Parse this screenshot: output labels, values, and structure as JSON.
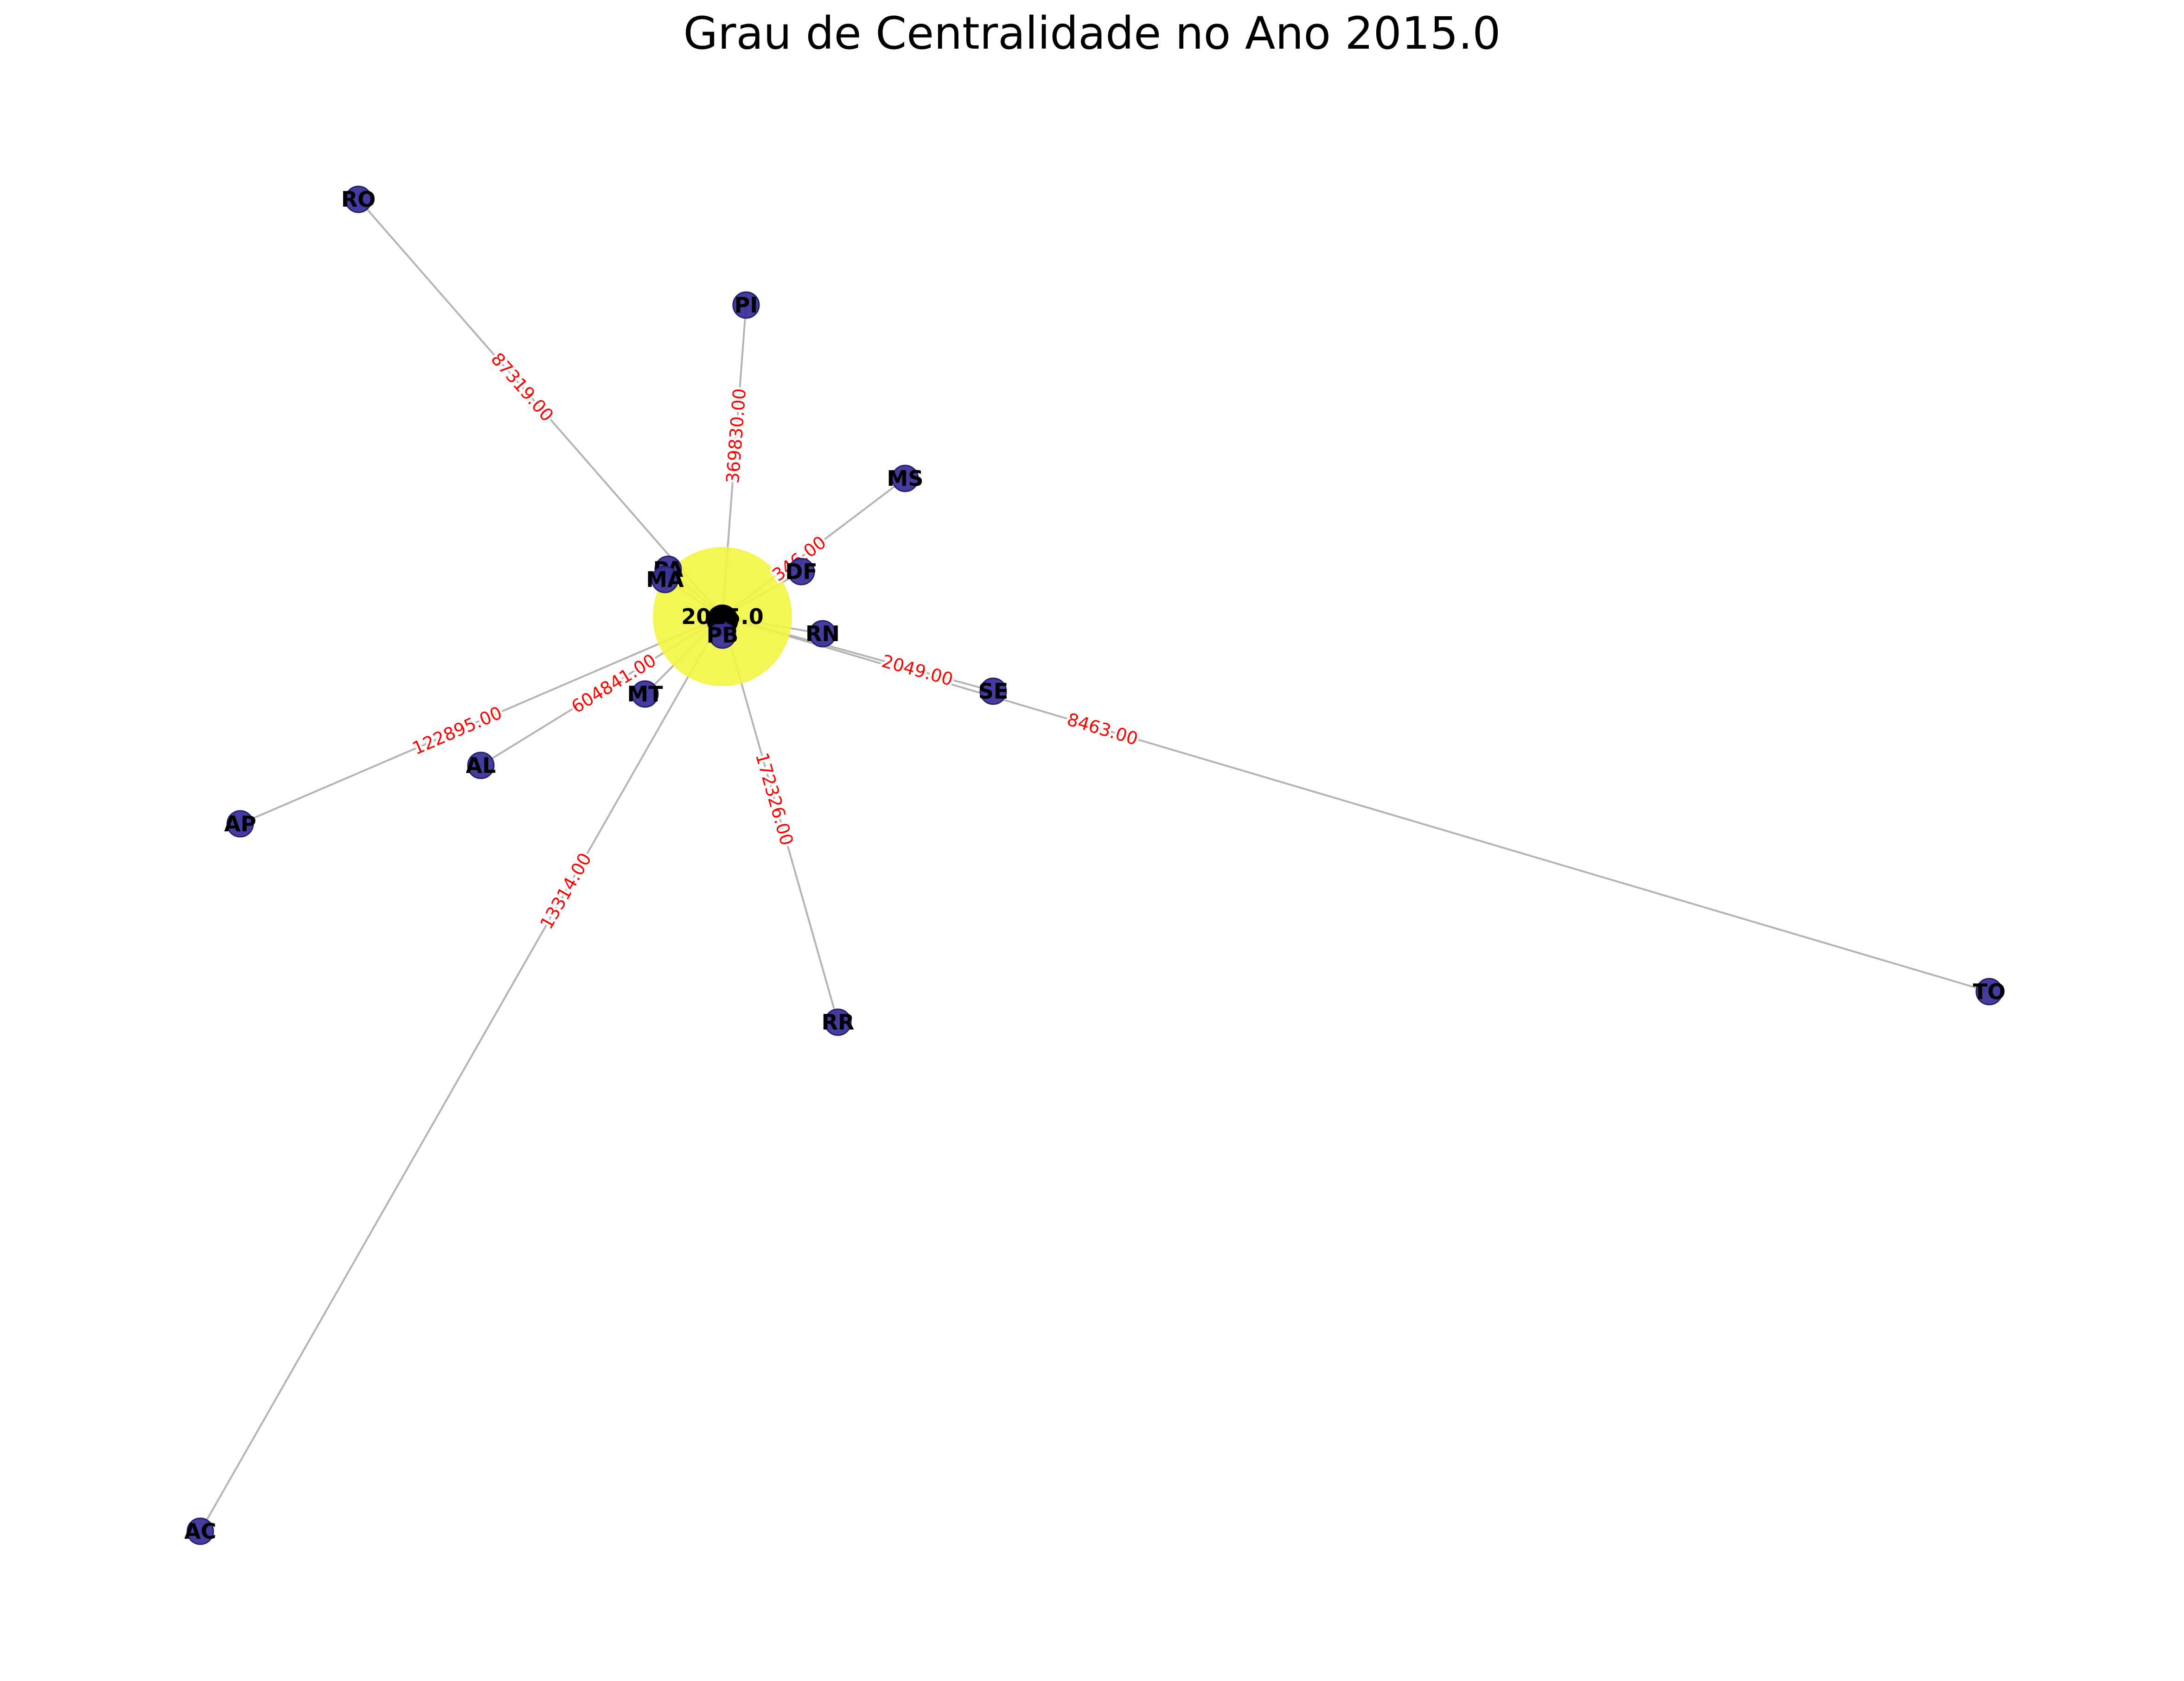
{
  "title": "Grau de Centralidade no Ano 2015.0",
  "colors": {
    "hub": "#f3f542",
    "node": "#3a339a",
    "node_stroke": "#26216b",
    "edge": "#b4b4b4",
    "edge_label": "#ff0000"
  },
  "hub": {
    "id": "2015.0",
    "label": "2015.0"
  },
  "nodes": [
    {
      "id": "RO",
      "label": "RO"
    },
    {
      "id": "PI",
      "label": "PI"
    },
    {
      "id": "MS",
      "label": "MS"
    },
    {
      "id": "PA",
      "label": "PA"
    },
    {
      "id": "MA",
      "label": "MA"
    },
    {
      "id": "DF",
      "label": "DF"
    },
    {
      "id": "RN",
      "label": "RN"
    },
    {
      "id": "PB",
      "label": "PB"
    },
    {
      "id": "SE",
      "label": "SE"
    },
    {
      "id": "MT",
      "label": "MT"
    },
    {
      "id": "AL",
      "label": "AL"
    },
    {
      "id": "AP",
      "label": "AP"
    },
    {
      "id": "RR",
      "label": "RR"
    },
    {
      "id": "TO",
      "label": "TO"
    },
    {
      "id": "AC",
      "label": "AC"
    }
  ],
  "edges": [
    {
      "target": "RO",
      "label": "87319.00"
    },
    {
      "target": "PI",
      "label": "369830.00"
    },
    {
      "target": "MS",
      "label": "346.00"
    },
    {
      "target": "SE",
      "label": "2049.00"
    },
    {
      "target": "TO",
      "label": "8463.00"
    },
    {
      "target": "AP",
      "label": "122895.00"
    },
    {
      "target": "AL",
      "label": "604841.00"
    },
    {
      "target": "RR",
      "label": "172326.00"
    },
    {
      "target": "AC",
      "label": "13314.00"
    }
  ]
}
